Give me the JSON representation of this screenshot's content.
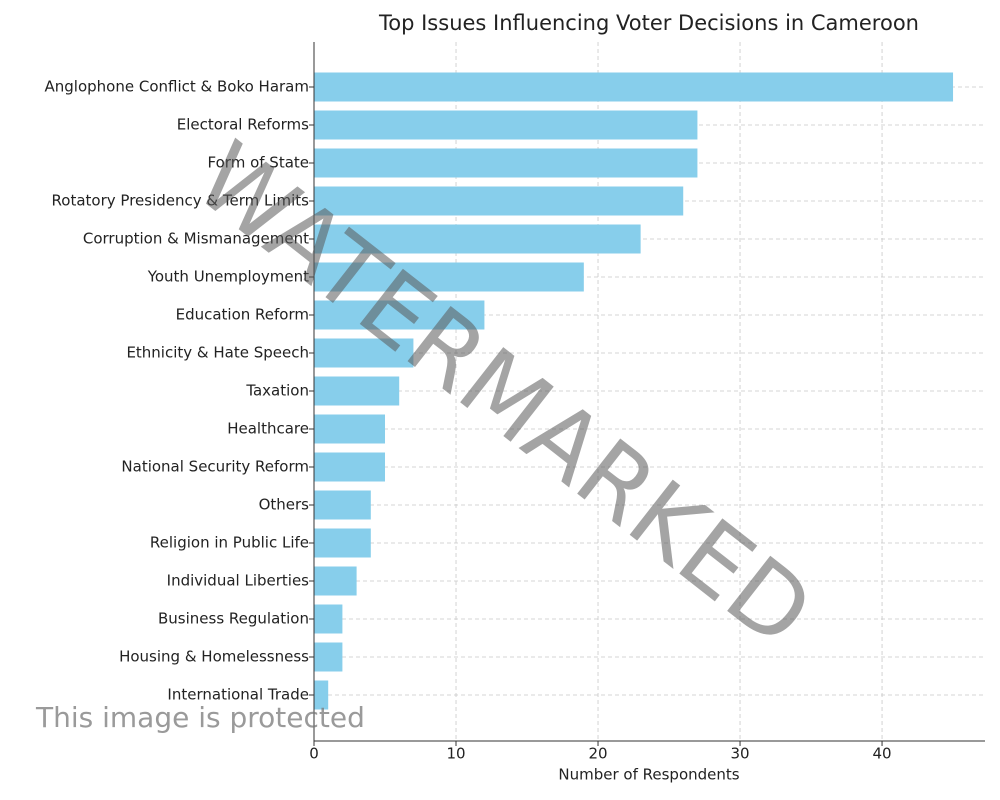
{
  "chart_data": {
    "type": "barh",
    "title": "Top Issues Influencing Voter Decisions in Cameroon",
    "xlabel": "Number of Respondents",
    "categories": [
      "Anglophone Conflict & Boko Haram",
      "Electoral Reforms",
      "Form of State",
      "Rotatory Presidency & Term Limits",
      "Corruption & Mismanagement",
      "Youth Unemployment",
      "Education Reform",
      "Ethnicity & Hate Speech",
      "Taxation",
      "Healthcare",
      "National Security Reform",
      "Others",
      "Religion in Public Life",
      "Individual Liberties",
      "Business Regulation",
      "Housing & Homelessness",
      "International Trade"
    ],
    "values": [
      45,
      27,
      27,
      26,
      23,
      19,
      12,
      7,
      6,
      5,
      5,
      4,
      4,
      3,
      2,
      2,
      1
    ],
    "color": "#87ceeb",
    "xlim": [
      0,
      47.25
    ],
    "xticks": [
      0,
      10,
      20,
      30,
      40
    ],
    "grid": true,
    "watermarks": [
      "WATERMARKED",
      "This image is protected"
    ]
  }
}
